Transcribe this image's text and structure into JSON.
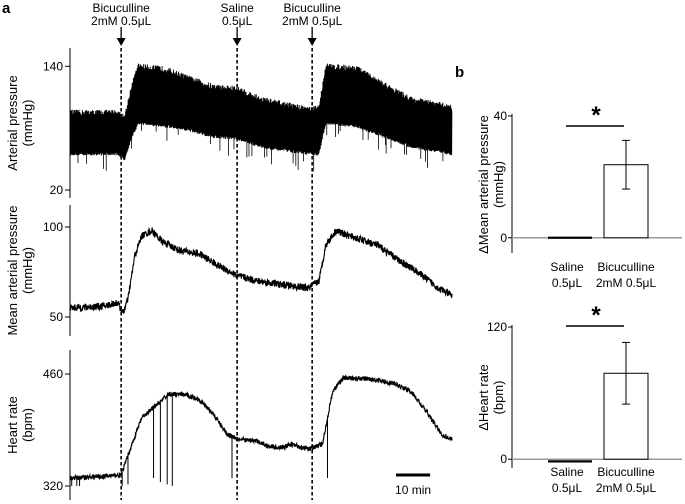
{
  "panel_a_label": "a",
  "panel_b_label": "b",
  "chart_data": [
    {
      "type": "line",
      "panel": "a",
      "x_unit": "min",
      "time_range": [
        0,
        112
      ],
      "scale_bar_minutes": 10,
      "scale_bar_label": "10 min",
      "events": [
        {
          "name": "bicuculline-1",
          "time": 15,
          "label_lines": [
            "Bicuculline",
            "2mM 0.5μL"
          ]
        },
        {
          "name": "saline",
          "time": 49,
          "label_lines": [
            "Saline",
            "0.5μL"
          ]
        },
        {
          "name": "bicuculline-2",
          "time": 71,
          "label_lines": [
            "Bicuculline",
            "2mM 0.5μL"
          ]
        }
      ],
      "traces": [
        {
          "id": "ap",
          "ylabel": "Arterial pressure (mmHg)",
          "ylabel_lines": [
            "Arterial pressure",
            "(mmHg)"
          ],
          "yticks": [
            20,
            140
          ],
          "ylim": [
            20,
            150
          ],
          "style": "oscillating-band",
          "points": [
            {
              "t": 0,
              "low": 55,
              "high": 95
            },
            {
              "t": 14,
              "low": 55,
              "high": 95
            },
            {
              "t": 16,
              "low": 50,
              "high": 90
            },
            {
              "t": 18,
              "low": 70,
              "high": 120
            },
            {
              "t": 20,
              "low": 85,
              "high": 140
            },
            {
              "t": 28,
              "low": 82,
              "high": 137
            },
            {
              "t": 35,
              "low": 78,
              "high": 128
            },
            {
              "t": 42,
              "low": 72,
              "high": 120
            },
            {
              "t": 49,
              "low": 70,
              "high": 118
            },
            {
              "t": 56,
              "low": 62,
              "high": 108
            },
            {
              "t": 64,
              "low": 58,
              "high": 102
            },
            {
              "t": 71,
              "low": 55,
              "high": 98
            },
            {
              "t": 73,
              "low": 55,
              "high": 100
            },
            {
              "t": 75,
              "low": 85,
              "high": 140
            },
            {
              "t": 84,
              "low": 82,
              "high": 138
            },
            {
              "t": 92,
              "low": 72,
              "high": 122
            },
            {
              "t": 100,
              "low": 62,
              "high": 108
            },
            {
              "t": 112,
              "low": 55,
              "high": 100
            }
          ]
        },
        {
          "id": "map",
          "ylabel": "Mean arterial pressure (mmHg)",
          "ylabel_lines": [
            "Mean arterial pressure",
            "(mmHg)"
          ],
          "yticks": [
            50,
            100
          ],
          "ylim": [
            45,
            105
          ],
          "style": "noisy-line",
          "noise": 2,
          "points": [
            {
              "t": 0,
              "v": 55
            },
            {
              "t": 10,
              "v": 56
            },
            {
              "t": 14,
              "v": 58
            },
            {
              "t": 15.5,
              "v": 52
            },
            {
              "t": 17,
              "v": 60
            },
            {
              "t": 19,
              "v": 84
            },
            {
              "t": 21,
              "v": 95
            },
            {
              "t": 24,
              "v": 98
            },
            {
              "t": 27,
              "v": 92
            },
            {
              "t": 32,
              "v": 87
            },
            {
              "t": 38,
              "v": 85
            },
            {
              "t": 44,
              "v": 78
            },
            {
              "t": 49,
              "v": 73
            },
            {
              "t": 55,
              "v": 70
            },
            {
              "t": 62,
              "v": 68
            },
            {
              "t": 70,
              "v": 66
            },
            {
              "t": 73,
              "v": 70
            },
            {
              "t": 75,
              "v": 90
            },
            {
              "t": 78,
              "v": 98
            },
            {
              "t": 82,
              "v": 95
            },
            {
              "t": 90,
              "v": 90
            },
            {
              "t": 96,
              "v": 82
            },
            {
              "t": 102,
              "v": 75
            },
            {
              "t": 108,
              "v": 66
            },
            {
              "t": 112,
              "v": 62
            }
          ]
        },
        {
          "id": "hr",
          "ylabel": "Heart rate (bpm)",
          "ylabel_lines": [
            "Heart rate",
            "(bpm)"
          ],
          "yticks": [
            320,
            460
          ],
          "ylim": [
            315,
            470
          ],
          "style": "noisy-line",
          "noise": 3,
          "spikes": [
            {
              "t": 0.5,
              "v": 320
            },
            {
              "t": 2,
              "v": 320
            },
            {
              "t": 2.8,
              "v": 320
            },
            {
              "t": 15.3,
              "v": 320
            },
            {
              "t": 17,
              "v": 322
            },
            {
              "t": 24.5,
              "v": 330
            },
            {
              "t": 26.5,
              "v": 325
            },
            {
              "t": 28.5,
              "v": 322
            },
            {
              "t": 30,
              "v": 320
            },
            {
              "t": 47.5,
              "v": 330
            },
            {
              "t": 75.5,
              "v": 330
            }
          ],
          "points": [
            {
              "t": 0,
              "v": 330
            },
            {
              "t": 10,
              "v": 332
            },
            {
              "t": 15,
              "v": 334
            },
            {
              "t": 18,
              "v": 370
            },
            {
              "t": 21,
              "v": 405
            },
            {
              "t": 25,
              "v": 420
            },
            {
              "t": 29,
              "v": 435
            },
            {
              "t": 34,
              "v": 434
            },
            {
              "t": 38,
              "v": 428
            },
            {
              "t": 42,
              "v": 410
            },
            {
              "t": 46,
              "v": 385
            },
            {
              "t": 50,
              "v": 378
            },
            {
              "t": 55,
              "v": 376
            },
            {
              "t": 58,
              "v": 370
            },
            {
              "t": 62,
              "v": 368
            },
            {
              "t": 65,
              "v": 372
            },
            {
              "t": 70,
              "v": 366
            },
            {
              "t": 74,
              "v": 372
            },
            {
              "t": 77,
              "v": 438
            },
            {
              "t": 80,
              "v": 455
            },
            {
              "t": 88,
              "v": 454
            },
            {
              "t": 95,
              "v": 448
            },
            {
              "t": 100,
              "v": 438
            },
            {
              "t": 105,
              "v": 410
            },
            {
              "t": 109,
              "v": 384
            },
            {
              "t": 112,
              "v": 378
            }
          ]
        }
      ]
    },
    {
      "type": "bar",
      "panel": "b",
      "ylabel": "ΔMean arterial pressure (mmHg)",
      "ylabel_lines": [
        "ΔMean arterial pressure",
        "(mmHg)"
      ],
      "ylim": [
        -5,
        40
      ],
      "yticks": [
        0,
        40
      ],
      "categories": [
        {
          "lines": [
            "Saline",
            "0.5μL"
          ],
          "value": 0,
          "error": 0
        },
        {
          "lines": [
            "Bicuculline",
            "2mM 0.5μL"
          ],
          "value": 24,
          "error": 8
        }
      ],
      "significance": "*"
    },
    {
      "type": "bar",
      "panel": "b",
      "ylabel": "ΔHeart rate (bpm)",
      "ylabel_lines": [
        "ΔHeart rate",
        "(bpm)"
      ],
      "ylim": [
        -8,
        120
      ],
      "yticks": [
        0,
        120
      ],
      "categories": [
        {
          "lines": [
            "Saline",
            "0.5μL"
          ],
          "value": -2,
          "error": 0
        },
        {
          "lines": [
            "Bicuculline",
            "2mM 0.5μL"
          ],
          "value": 78,
          "error": 28
        }
      ],
      "significance": "*"
    }
  ]
}
